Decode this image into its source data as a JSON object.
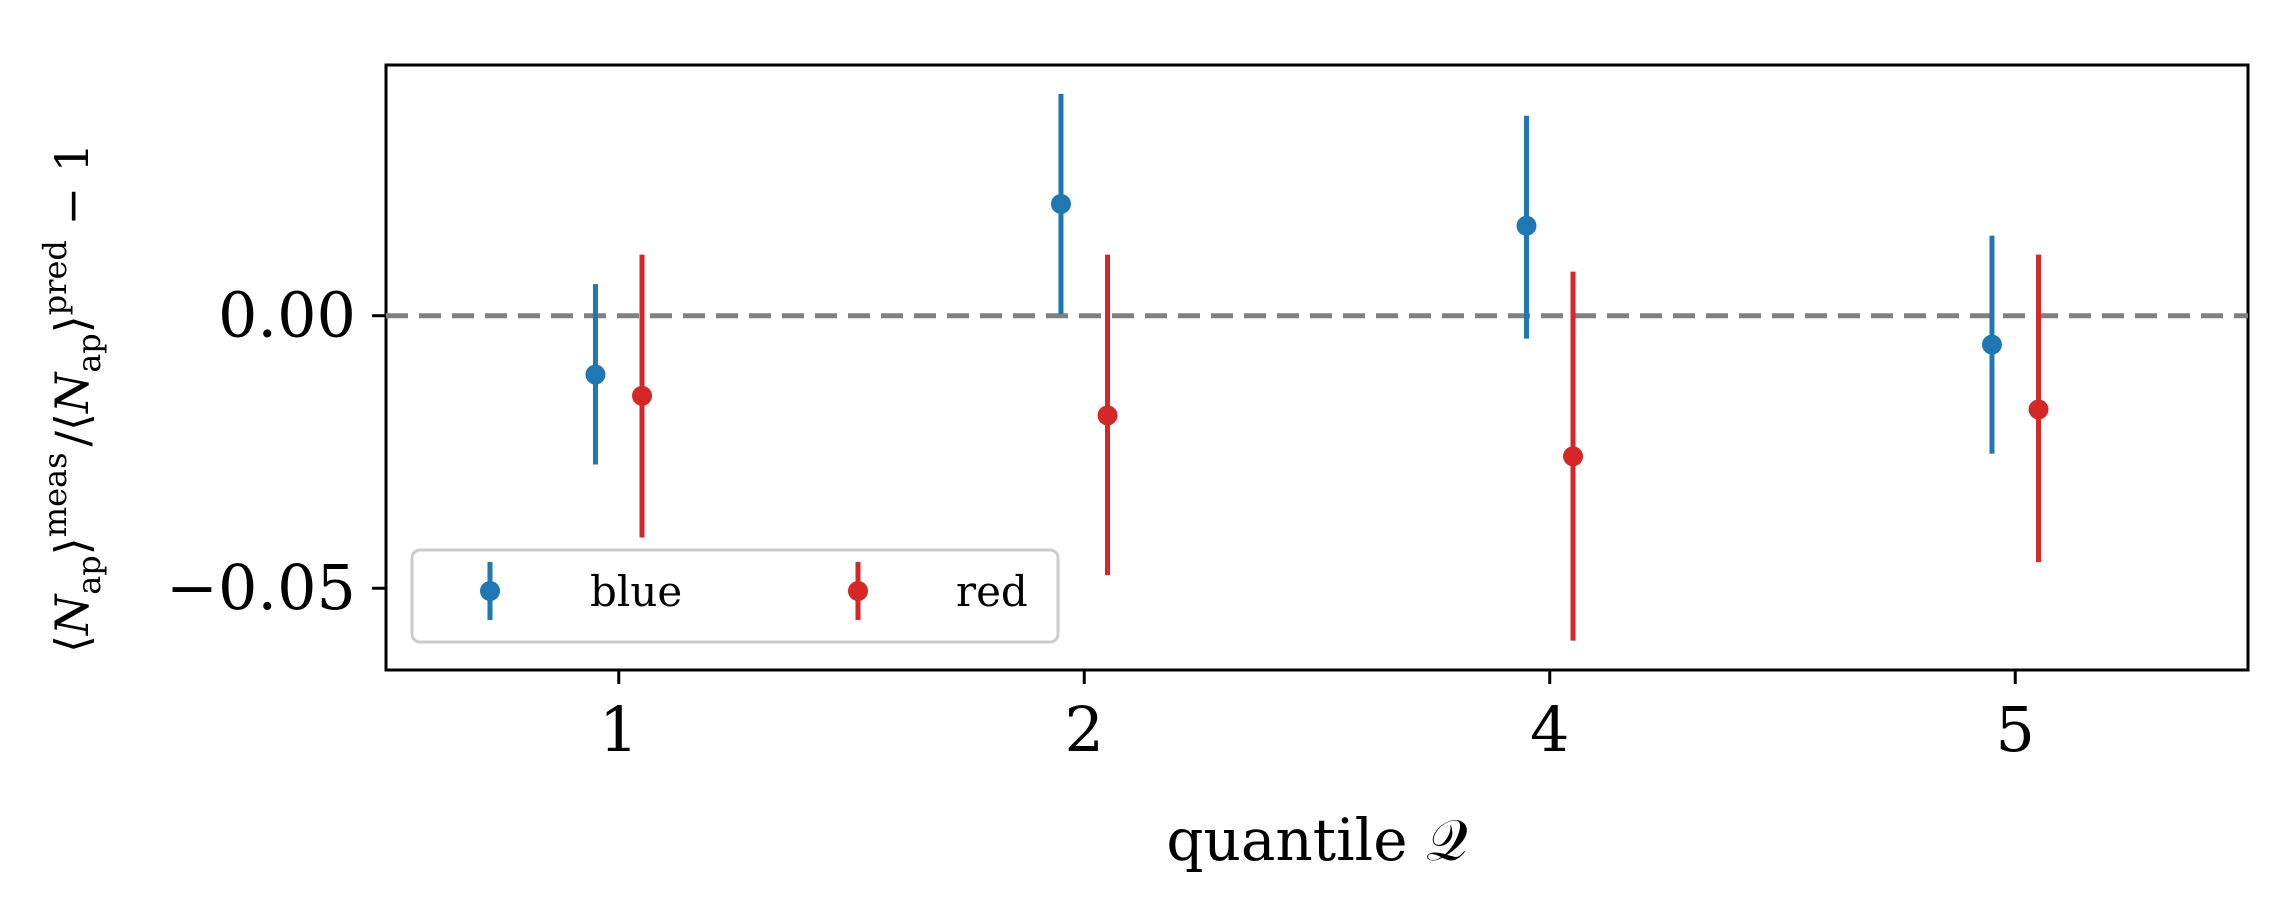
{
  "chart_data": {
    "type": "scatter",
    "title": "",
    "xlabel": "quantile 𝒬",
    "ylabel": "⟨N_ap⟩^meas / ⟨N_ap⟩^pred − 1",
    "ylabel_parts": {
      "lang1": "⟨",
      "n1": "N",
      "sub1": "ap",
      "rang1": "⟩",
      "sup1": "meas",
      "slash": "/",
      "lang2": "⟨",
      "n2": "N",
      "sub2": "ap",
      "rang2": "⟩",
      "sup2": "pred",
      "tail": " − 1"
    },
    "x_positions": [
      1,
      2,
      3,
      4
    ],
    "x_tick_labels": [
      "1",
      "2",
      "4",
      "5"
    ],
    "xlim": [
      0.5,
      4.5
    ],
    "ylim": [
      -0.065,
      0.046
    ],
    "y_ticks": [
      0.0,
      -0.05
    ],
    "y_tick_labels": [
      "0.00",
      "−0.05"
    ],
    "reference_line": {
      "y": 0.0,
      "style": "dashed",
      "color": "#808080"
    },
    "legend": {
      "placement": "lower-left",
      "columns": 2
    },
    "grid": false,
    "series": [
      {
        "name": "blue",
        "color": "#1f77b4",
        "x_offset": -0.05,
        "y": [
          -0.0108,
          0.0205,
          0.0165,
          -0.0053
        ],
        "yerr_low": [
          -0.0273,
          0.0003,
          -0.0042,
          -0.0253
        ],
        "yerr_high": [
          0.0058,
          0.0407,
          0.0367,
          0.0147
        ]
      },
      {
        "name": "red",
        "color": "#d62728",
        "x_offset": 0.05,
        "y": [
          -0.0147,
          -0.0183,
          -0.0258,
          -0.0172
        ],
        "yerr_low": [
          -0.0407,
          -0.0476,
          -0.0596,
          -0.0452
        ],
        "yerr_high": [
          0.0112,
          0.0112,
          0.0081,
          0.0112
        ]
      }
    ]
  }
}
